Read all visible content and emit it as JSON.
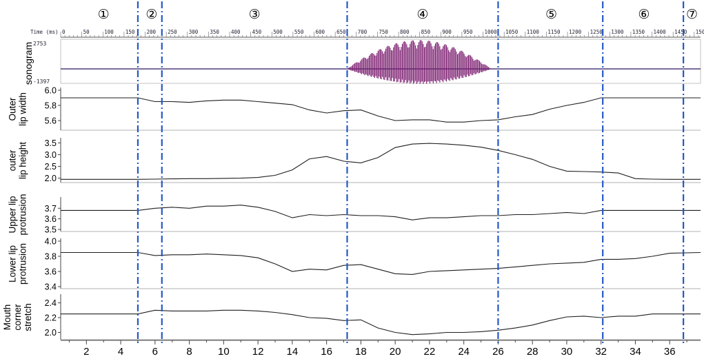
{
  "chart_data": {
    "type": "line",
    "x_ticks": [
      2,
      4,
      6,
      8,
      10,
      12,
      14,
      16,
      18,
      20,
      22,
      24,
      26,
      28,
      30,
      32,
      34,
      36
    ],
    "xlim": [
      0.5,
      37.8
    ],
    "time_axis": {
      "label": "Time (ms)",
      "ticks": [
        0,
        50,
        100,
        150,
        200,
        250,
        300,
        350,
        400,
        450,
        500,
        550,
        600,
        650,
        700,
        750,
        800,
        850,
        900,
        950,
        1000,
        1050,
        1100,
        1150,
        1200,
        1250,
        1300,
        1350,
        1400,
        1450,
        1500
      ]
    },
    "segments": [
      {
        "label": "①",
        "center": 3.0
      },
      {
        "label": "②",
        "center": 5.8
      },
      {
        "label": "③",
        "center": 11.8
      },
      {
        "label": "④",
        "center": 21.6
      },
      {
        "label": "⑤",
        "center": 29.1
      },
      {
        "label": "⑥",
        "center": 34.5
      },
      {
        "label": "⑦",
        "center": 37.3
      }
    ],
    "boundaries": [
      5.0,
      6.4,
      17.2,
      26.0,
      32.1,
      36.8
    ],
    "sonogram": {
      "label": "sonogram",
      "ymax_label": "2753",
      "ymin_label": "-1397",
      "burst_start": 17.2,
      "burst_end": 26.0,
      "color": "#7a1a6e"
    },
    "panels": [
      {
        "name": "outer-lip-width",
        "ylabel": [
          "Outer",
          "lip width"
        ],
        "ylim": [
          5.5,
          6.0
        ],
        "yticks": [
          5.6,
          5.8,
          6.0
        ],
        "x": [
          0.5,
          5,
          6,
          7,
          8,
          9,
          10,
          11,
          12,
          13,
          14,
          15,
          16,
          17,
          18,
          19,
          20,
          21,
          22,
          23,
          24,
          25,
          26,
          27,
          28,
          29,
          30,
          31,
          32,
          33,
          34,
          35,
          36,
          37.8
        ],
        "y": [
          5.9,
          5.9,
          5.85,
          5.85,
          5.84,
          5.86,
          5.87,
          5.87,
          5.85,
          5.83,
          5.81,
          5.74,
          5.7,
          5.73,
          5.74,
          5.66,
          5.6,
          5.61,
          5.61,
          5.58,
          5.58,
          5.6,
          5.61,
          5.65,
          5.68,
          5.75,
          5.8,
          5.84,
          5.9,
          5.9,
          5.9,
          5.9,
          5.9,
          5.9
        ]
      },
      {
        "name": "outer-lip-height",
        "ylabel": [
          "outer",
          "lip height"
        ],
        "ylim": [
          1.9,
          3.6
        ],
        "yticks": [
          2.0,
          2.5,
          3.0,
          3.5
        ],
        "x": [
          0.5,
          5,
          6,
          7,
          8,
          9,
          10,
          11,
          12,
          13,
          14,
          15,
          16,
          17,
          18,
          19,
          20,
          21,
          22,
          23,
          24,
          25,
          26,
          27,
          28,
          29,
          30,
          31,
          32,
          33,
          34,
          35,
          36,
          37.8
        ],
        "y": [
          1.95,
          1.95,
          1.96,
          1.97,
          1.98,
          1.98,
          1.99,
          2.0,
          2.03,
          2.12,
          2.35,
          2.82,
          2.92,
          2.72,
          2.65,
          2.88,
          3.3,
          3.45,
          3.48,
          3.45,
          3.4,
          3.32,
          3.18,
          3.0,
          2.8,
          2.5,
          2.3,
          2.28,
          2.26,
          2.22,
          1.98,
          1.96,
          1.95,
          1.95
        ]
      },
      {
        "name": "upper-lip-protrusion",
        "ylabel": [
          "Upper lip",
          "protrusion"
        ],
        "ylim": [
          3.5,
          3.78
        ],
        "yticks": [
          3.5,
          3.6,
          3.7
        ],
        "x": [
          0.5,
          5,
          6,
          7,
          8,
          9,
          10,
          11,
          12,
          13,
          14,
          15,
          16,
          17,
          18,
          19,
          20,
          21,
          22,
          23,
          24,
          25,
          26,
          27,
          28,
          29,
          30,
          31,
          32,
          33,
          34,
          35,
          36,
          37.8
        ],
        "y": [
          3.68,
          3.68,
          3.7,
          3.71,
          3.7,
          3.72,
          3.72,
          3.73,
          3.71,
          3.67,
          3.61,
          3.64,
          3.63,
          3.64,
          3.63,
          3.63,
          3.62,
          3.59,
          3.61,
          3.61,
          3.62,
          3.63,
          3.63,
          3.64,
          3.64,
          3.65,
          3.66,
          3.65,
          3.68,
          3.68,
          3.68,
          3.68,
          3.68,
          3.68
        ]
      },
      {
        "name": "lower-lip-protrusion",
        "ylabel": [
          "Lower lip",
          "protrusion"
        ],
        "ylim": [
          3.4,
          4.0
        ],
        "yticks": [
          3.4,
          3.6,
          3.8,
          4.0
        ],
        "x": [
          0.5,
          5,
          6,
          7,
          8,
          9,
          10,
          11,
          12,
          13,
          14,
          15,
          16,
          17,
          18,
          19,
          20,
          21,
          22,
          23,
          24,
          25,
          26,
          27,
          28,
          29,
          30,
          31,
          32,
          33,
          34,
          35,
          36,
          37.8
        ],
        "y": [
          3.85,
          3.85,
          3.81,
          3.82,
          3.82,
          3.83,
          3.82,
          3.81,
          3.78,
          3.7,
          3.6,
          3.63,
          3.62,
          3.68,
          3.69,
          3.63,
          3.57,
          3.56,
          3.6,
          3.61,
          3.62,
          3.63,
          3.64,
          3.66,
          3.68,
          3.7,
          3.71,
          3.72,
          3.76,
          3.76,
          3.77,
          3.8,
          3.84,
          3.85
        ]
      },
      {
        "name": "mouth-corner-stretch",
        "ylabel": [
          "Mouth",
          "corner",
          "stretch"
        ],
        "ylim": [
          1.93,
          2.48
        ],
        "yticks": [
          2.0,
          2.2,
          2.4
        ],
        "x": [
          0.5,
          5,
          6,
          7,
          8,
          9,
          10,
          11,
          12,
          13,
          14,
          15,
          16,
          17,
          18,
          19,
          20,
          21,
          22,
          23,
          24,
          25,
          26,
          27,
          28,
          29,
          30,
          31,
          32,
          33,
          34,
          35,
          36,
          37.8
        ],
        "y": [
          2.25,
          2.25,
          2.3,
          2.29,
          2.29,
          2.29,
          2.3,
          2.3,
          2.29,
          2.27,
          2.24,
          2.2,
          2.19,
          2.16,
          2.17,
          2.06,
          2.0,
          1.97,
          1.98,
          2.0,
          2.0,
          2.01,
          2.03,
          2.06,
          2.1,
          2.16,
          2.21,
          2.22,
          2.2,
          2.22,
          2.22,
          2.25,
          2.25,
          2.25
        ]
      }
    ],
    "colors": {
      "line": "#1e1e1e",
      "boundary": "#2457c5",
      "grid": "#888888"
    }
  }
}
